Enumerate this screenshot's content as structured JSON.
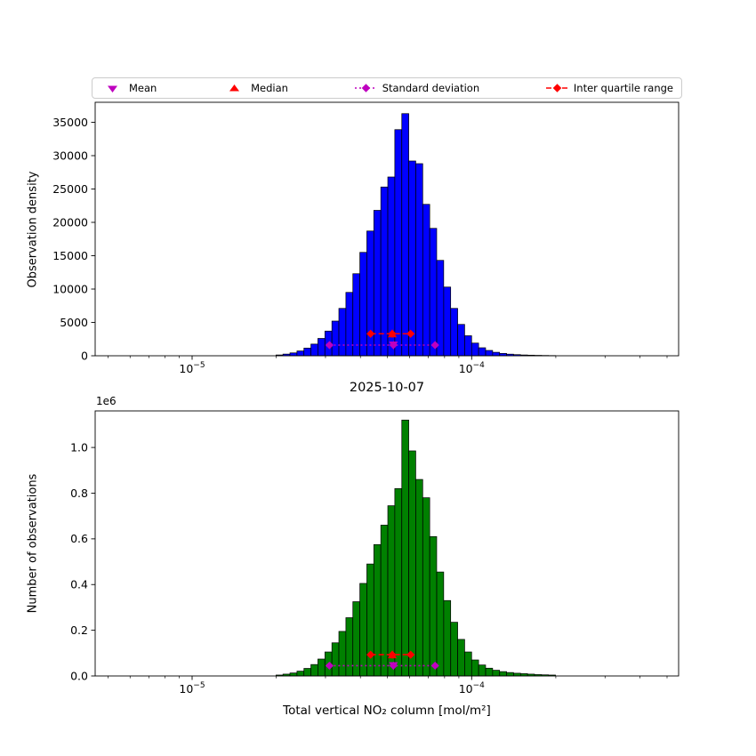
{
  "legend": {
    "items": [
      {
        "label": "Mean",
        "marker": "triangle-down",
        "color": "#bf00bf",
        "linestyle": "none"
      },
      {
        "label": "Median",
        "marker": "triangle-up",
        "color": "#ff0000",
        "linestyle": "none"
      },
      {
        "label": "Standard deviation",
        "marker": "diamond",
        "color": "#bf00bf",
        "linestyle": "dotted"
      },
      {
        "label": "Inter quartile range",
        "marker": "diamond",
        "color": "#ff0000",
        "linestyle": "dashed"
      }
    ]
  },
  "chart_data": {
    "type": "bar",
    "x_scale": "log",
    "title": "2025-10-07",
    "xlabel": "Total vertical NO₂ column [mol/m²]",
    "xlim": [
      4.5e-06,
      0.00055
    ],
    "xticks": [
      {
        "value": 1e-05,
        "base": "10",
        "exp": "−5"
      },
      {
        "value": 0.0001,
        "base": "10",
        "exp": "−4"
      }
    ],
    "bin_centers": [
      2.054e-05,
      2.175e-05,
      2.304e-05,
      2.441e-05,
      2.585e-05,
      2.738e-05,
      2.9e-05,
      3.073e-05,
      3.255e-05,
      3.447e-05,
      3.652e-05,
      3.868e-05,
      4.097e-05,
      4.34e-05,
      4.597e-05,
      4.87e-05,
      5.158e-05,
      5.464e-05,
      5.788e-05,
      6.131e-05,
      6.494e-05,
      6.879e-05,
      7.286e-05,
      7.718e-05,
      8.175e-05,
      8.66e-05,
      9.173e-05,
      9.716e-05,
      0.0001029,
      0.000109,
      0.0001155,
      0.0001223,
      0.0001296,
      0.0001372,
      0.0001454,
      0.000154,
      0.0001631,
      0.0001728,
      0.000183,
      0.0001939
    ],
    "charts": [
      {
        "name": "observation-density",
        "ylabel": "Observation density",
        "bar_color": "#0000ff",
        "edge_color": "#000000",
        "ylim": [
          0,
          38000
        ],
        "yticks": [
          {
            "value": 0,
            "label": "0"
          },
          {
            "value": 5000,
            "label": "5000"
          },
          {
            "value": 10000,
            "label": "10000"
          },
          {
            "value": 15000,
            "label": "15000"
          },
          {
            "value": 20000,
            "label": "20000"
          },
          {
            "value": 25000,
            "label": "25000"
          },
          {
            "value": 30000,
            "label": "30000"
          },
          {
            "value": 35000,
            "label": "35000"
          }
        ],
        "values": [
          120,
          250,
          430,
          720,
          1150,
          1750,
          2600,
          3700,
          5200,
          7100,
          9500,
          12300,
          15500,
          18700,
          21800,
          25300,
          26800,
          33900,
          36300,
          29200,
          28800,
          22700,
          19100,
          14300,
          10300,
          7100,
          4700,
          3000,
          1900,
          1200,
          800,
          520,
          350,
          240,
          170,
          120,
          90,
          65,
          45,
          30
        ],
        "stats": {
          "mean": 5.25e-05,
          "median": 5.2e-05,
          "std_range": [
            3.1e-05,
            7.4e-05
          ],
          "iqr_range": [
            4.35e-05,
            6.05e-05
          ],
          "std_marker_y": 1600,
          "iqr_marker_y": 3300,
          "mean_color": "#bf00bf",
          "median_color": "#ff0000"
        }
      },
      {
        "name": "number-of-observations",
        "ylabel": "Number of observations",
        "offset_label": "1e6",
        "bar_color": "#008000",
        "edge_color": "#000000",
        "ylim": [
          0,
          1160000
        ],
        "yticks": [
          {
            "value": 0,
            "label": "0.0"
          },
          {
            "value": 200000,
            "label": "0.2"
          },
          {
            "value": 400000,
            "label": "0.4"
          },
          {
            "value": 600000,
            "label": "0.6"
          },
          {
            "value": 800000,
            "label": "0.8"
          },
          {
            "value": 1000000,
            "label": "1.0"
          }
        ],
        "values": [
          4000,
          8000,
          13000,
          21000,
          33000,
          50000,
          74000,
          105000,
          145000,
          195000,
          255000,
          325000,
          405000,
          490000,
          575000,
          660000,
          745000,
          820000,
          1120000,
          985000,
          860000,
          780000,
          610000,
          455000,
          330000,
          235000,
          160000,
          105000,
          70000,
          48000,
          34000,
          25000,
          19000,
          15000,
          12000,
          10000,
          8000,
          6000,
          5000,
          4000
        ],
        "stats": {
          "mean": 5.25e-05,
          "median": 5.2e-05,
          "std_range": [
            3.1e-05,
            7.4e-05
          ],
          "iqr_range": [
            4.35e-05,
            6.05e-05
          ],
          "std_marker_y": 45000,
          "iqr_marker_y": 93000,
          "mean_color": "#bf00bf",
          "median_color": "#ff0000"
        }
      }
    ]
  }
}
